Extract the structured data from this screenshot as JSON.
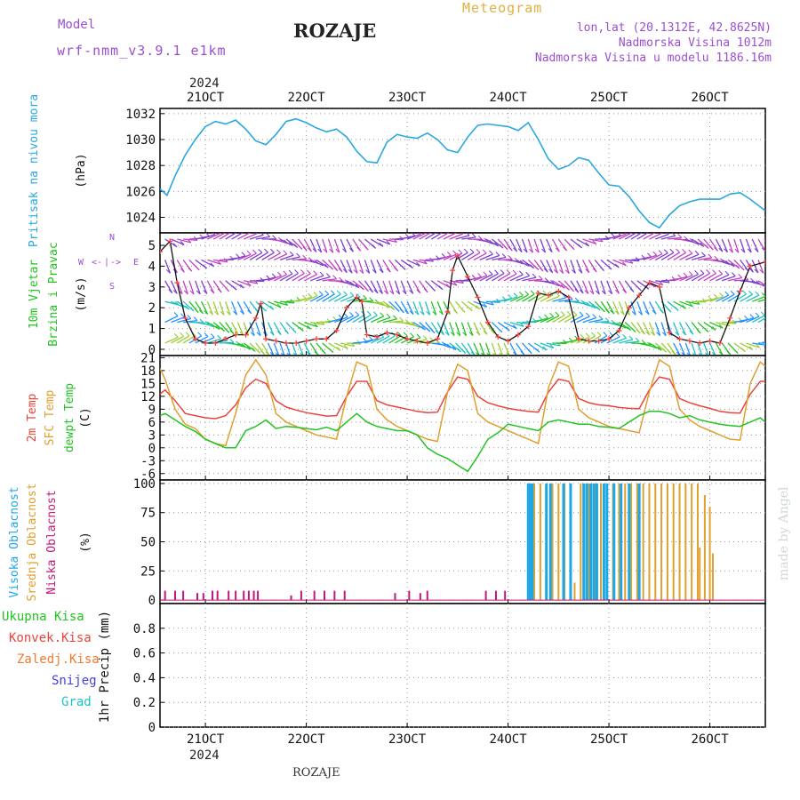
{
  "header": {
    "model_label": "Model",
    "model_name": "wrf-nmm_v3.9.1 e1km",
    "station_title": "ROZAJE",
    "product": "Meteogram",
    "coords": "lon,lat (20.1312E, 42.8625N)",
    "elevation": "Nadmorska Visina 1012m",
    "model_elevation": "Nadmorska Visina u modelu 1186.16m",
    "watermark": "made by Angel",
    "footer_station": "ROZAJE"
  },
  "colors": {
    "pressure": "#29a8e0",
    "temp2m": "#e8453c",
    "sfc_temp": "#e0a030",
    "dewpoint": "#22c322",
    "high_cloud": "#1ea7e6",
    "mid_cloud": "#e0a030",
    "low_cloud": "#c0187a",
    "title_purple": "#9b4fd0",
    "title_orange": "#e0b040"
  },
  "time_axis": {
    "year_label": "2024",
    "day_labels": [
      "21OCT",
      "22OCT",
      "23OCT",
      "24OCT",
      "25OCT",
      "26OCT"
    ],
    "day_values": [
      21,
      22,
      23,
      24,
      25,
      26
    ],
    "x_range": [
      20.55,
      26.55
    ]
  },
  "chart_data": [
    {
      "type": "line",
      "id": "pressure",
      "ylabel_parts": [
        "Pritisak na nivou mora",
        "(hPa)"
      ],
      "ylim": [
        1022.8,
        1032.4
      ],
      "yticks": [
        1024,
        1026,
        1028,
        1030,
        1032
      ],
      "grid": true,
      "series": [
        {
          "x": [
            20.55,
            20.62,
            20.7,
            20.8,
            20.9,
            21.0,
            21.1,
            21.2,
            21.3,
            21.4,
            21.5,
            21.6,
            21.7,
            21.8,
            21.9,
            22.0,
            22.1,
            22.2,
            22.3,
            22.4,
            22.5,
            22.6,
            22.7,
            22.8,
            22.9,
            23.0,
            23.1,
            23.2,
            23.3,
            23.4,
            23.5,
            23.6,
            23.7,
            23.8,
            23.9,
            24.0,
            24.1,
            24.2,
            24.3,
            24.4,
            24.5,
            24.6,
            24.7,
            24.8,
            24.9,
            25.0,
            25.1,
            25.2,
            25.3,
            25.4,
            25.5,
            25.6,
            25.7,
            25.8,
            25.9,
            26.0,
            26.1,
            26.2,
            26.3,
            26.4,
            26.5,
            26.55
          ],
          "y": [
            1026.2,
            1025.7,
            1027.2,
            1028.8,
            1030.0,
            1031.0,
            1031.4,
            1031.2,
            1031.5,
            1030.8,
            1029.9,
            1029.6,
            1030.4,
            1031.4,
            1031.6,
            1031.3,
            1030.9,
            1030.6,
            1030.8,
            1030.2,
            1029.1,
            1028.3,
            1028.2,
            1029.8,
            1030.4,
            1030.2,
            1030.1,
            1030.5,
            1030.0,
            1029.2,
            1029.0,
            1030.2,
            1031.1,
            1031.2,
            1031.1,
            1031.0,
            1030.7,
            1031.3,
            1030.0,
            1028.5,
            1027.7,
            1028.0,
            1028.6,
            1028.4,
            1027.4,
            1026.5,
            1026.4,
            1025.6,
            1024.5,
            1023.6,
            1023.2,
            1024.2,
            1024.9,
            1025.2,
            1025.4,
            1025.4,
            1025.4,
            1025.8,
            1025.9,
            1025.4,
            1024.8,
            1024.5
          ]
        }
      ]
    },
    {
      "type": "line",
      "id": "wind",
      "ylabel_parts": [
        "10m Vjetar",
        "Brzina i Pravac",
        "(m/s)"
      ],
      "compass": [
        "W",
        "<-",
        "|",
        "->",
        "E",
        "S",
        "N"
      ],
      "ylim": [
        -0.3,
        5.6
      ],
      "yticks": [
        0,
        1,
        2,
        3,
        4,
        5
      ],
      "grid": true,
      "series": [
        {
          "name": "speed",
          "x": [
            20.55,
            20.65,
            20.72,
            20.8,
            20.9,
            21.0,
            21.1,
            21.2,
            21.3,
            21.4,
            21.5,
            21.55,
            21.6,
            21.7,
            21.8,
            21.9,
            22.0,
            22.1,
            22.2,
            22.3,
            22.4,
            22.5,
            22.55,
            22.6,
            22.7,
            22.8,
            22.9,
            23.0,
            23.1,
            23.2,
            23.3,
            23.4,
            23.45,
            23.5,
            23.6,
            23.7,
            23.8,
            23.9,
            24.0,
            24.1,
            24.2,
            24.3,
            24.4,
            24.5,
            24.6,
            24.7,
            24.8,
            24.9,
            25.0,
            25.1,
            25.2,
            25.3,
            25.4,
            25.5,
            25.6,
            25.7,
            25.8,
            25.9,
            26.0,
            26.1,
            26.2,
            26.3,
            26.4,
            26.55
          ],
          "y": [
            4.7,
            5.2,
            3.2,
            1.5,
            0.5,
            0.3,
            0.3,
            0.5,
            0.7,
            0.7,
            1.5,
            2.2,
            0.5,
            0.4,
            0.3,
            0.3,
            0.4,
            0.5,
            0.5,
            0.9,
            2.0,
            2.5,
            2.3,
            0.7,
            0.6,
            0.8,
            0.7,
            0.5,
            0.4,
            0.3,
            0.5,
            1.8,
            3.8,
            4.5,
            3.5,
            2.5,
            1.3,
            0.6,
            0.4,
            0.7,
            1.1,
            2.7,
            2.6,
            2.8,
            2.5,
            0.5,
            0.4,
            0.4,
            0.5,
            0.9,
            2.0,
            2.6,
            3.2,
            3.0,
            0.8,
            0.5,
            0.4,
            0.3,
            0.4,
            0.3,
            1.5,
            2.8,
            4.0,
            4.2
          ]
        }
      ]
    },
    {
      "type": "line",
      "id": "temperature",
      "ylabel_parts": [
        "2m Temp",
        "SFC Temp",
        "dewpt Temp",
        "(C)"
      ],
      "ylim": [
        -7.5,
        21.5
      ],
      "yticks": [
        -6,
        -3,
        0,
        3,
        6,
        9,
        12,
        15,
        18,
        21
      ],
      "grid": true,
      "series": [
        {
          "name": "2m Temp",
          "x": [
            20.55,
            20.6,
            20.7,
            20.8,
            20.9,
            21.0,
            21.1,
            21.2,
            21.3,
            21.4,
            21.5,
            21.6,
            21.7,
            21.8,
            21.9,
            22.0,
            22.1,
            22.2,
            22.3,
            22.4,
            22.5,
            22.6,
            22.7,
            22.8,
            22.9,
            23.0,
            23.1,
            23.2,
            23.3,
            23.4,
            23.5,
            23.6,
            23.7,
            23.8,
            23.9,
            24.0,
            24.1,
            24.2,
            24.3,
            24.4,
            24.5,
            24.6,
            24.7,
            24.8,
            24.9,
            25.0,
            25.1,
            25.2,
            25.3,
            25.4,
            25.5,
            25.6,
            25.7,
            25.8,
            25.9,
            26.0,
            26.1,
            26.2,
            26.3,
            26.4,
            26.5,
            26.55
          ],
          "y": [
            12.5,
            13.5,
            11,
            8,
            7.5,
            7,
            6.8,
            7.5,
            10,
            14,
            16,
            15,
            11,
            9.5,
            8.8,
            8.2,
            7.8,
            7.4,
            7.5,
            12,
            15.5,
            15.5,
            11,
            10,
            9.5,
            9,
            8.5,
            8.2,
            8.3,
            13,
            16.5,
            16,
            12,
            10.5,
            9.8,
            9.2,
            8.8,
            8.5,
            8.3,
            13,
            16,
            15.5,
            11.5,
            10.5,
            10,
            9.8,
            9.4,
            9.2,
            9.1,
            13.5,
            16.5,
            16,
            11.5,
            10.5,
            9.8,
            9.2,
            8.5,
            8.2,
            8.1,
            12.5,
            15.5,
            15.5
          ]
        },
        {
          "name": "SFC Temp",
          "x": [
            20.55,
            20.6,
            20.7,
            20.8,
            20.9,
            21.0,
            21.1,
            21.2,
            21.3,
            21.4,
            21.5,
            21.6,
            21.7,
            21.8,
            21.9,
            22.0,
            22.1,
            22.2,
            22.3,
            22.4,
            22.5,
            22.6,
            22.7,
            22.8,
            22.9,
            23.0,
            23.1,
            23.2,
            23.3,
            23.4,
            23.5,
            23.6,
            23.7,
            23.8,
            23.9,
            24.0,
            24.1,
            24.2,
            24.3,
            24.4,
            24.5,
            24.6,
            24.7,
            24.8,
            24.9,
            25.0,
            25.1,
            25.2,
            25.3,
            25.4,
            25.5,
            25.6,
            25.7,
            25.8,
            25.9,
            26.0,
            26.1,
            26.2,
            26.3,
            26.4,
            26.5,
            26.55
          ],
          "y": [
            18.5,
            16,
            9,
            5.5,
            4.5,
            2,
            1,
            0.5,
            8,
            17,
            20.5,
            17,
            8,
            6,
            5,
            4,
            3,
            2.5,
            2,
            12,
            20,
            19,
            9,
            6.5,
            5,
            4,
            3,
            2,
            1.5,
            13,
            19.5,
            18,
            8,
            6,
            5,
            4,
            3,
            2,
            1,
            14,
            20,
            19,
            9,
            7,
            6,
            5,
            4.5,
            4,
            3.5,
            13,
            20.5,
            19,
            9,
            6.5,
            5,
            4,
            3,
            2,
            1.8,
            15,
            20,
            19
          ]
        },
        {
          "name": "dewpt Temp",
          "x": [
            20.55,
            20.6,
            20.7,
            20.8,
            20.9,
            21.0,
            21.1,
            21.2,
            21.3,
            21.4,
            21.5,
            21.6,
            21.7,
            21.8,
            21.9,
            22.0,
            22.1,
            22.2,
            22.3,
            22.4,
            22.5,
            22.6,
            22.7,
            22.8,
            22.9,
            23.0,
            23.1,
            23.2,
            23.3,
            23.4,
            23.5,
            23.6,
            23.7,
            23.8,
            23.9,
            24.0,
            24.1,
            24.2,
            24.3,
            24.4,
            24.5,
            24.6,
            24.7,
            24.8,
            24.9,
            25.0,
            25.1,
            25.2,
            25.3,
            25.4,
            25.5,
            25.6,
            25.7,
            25.8,
            25.9,
            26.0,
            26.1,
            26.2,
            26.3,
            26.4,
            26.5,
            26.55
          ],
          "y": [
            7.5,
            8,
            6.5,
            5,
            3.8,
            2,
            1,
            0,
            0,
            4,
            5,
            6.5,
            4.5,
            5,
            4.8,
            4.5,
            4.2,
            4.8,
            4,
            6,
            8,
            6,
            5,
            4.5,
            4,
            4,
            3,
            0,
            -1.5,
            -2.5,
            -4,
            -5.5,
            -2,
            2,
            3.5,
            5.5,
            5,
            4.5,
            4,
            6,
            6.5,
            6,
            5.5,
            5.5,
            5,
            4.8,
            4.5,
            6,
            7.5,
            8.5,
            8.5,
            8,
            7,
            7.5,
            6.5,
            6,
            5.5,
            5.2,
            5,
            6,
            7,
            6
          ]
        }
      ]
    },
    {
      "type": "bar",
      "id": "clouds",
      "ylabel_parts": [
        "Visoka Oblacnost",
        "Srednja Oblacnost",
        "Niska Oblacnost",
        "(%)"
      ],
      "ylim": [
        -3,
        103
      ],
      "yticks": [
        0,
        25,
        50,
        75,
        100
      ],
      "grid": true,
      "series": [
        {
          "name": "Niska Oblacnost",
          "x": [
            20.6,
            20.7,
            20.78,
            20.92,
            20.98,
            21.07,
            21.12,
            21.23,
            21.3,
            21.38,
            21.43,
            21.48,
            21.52,
            21.85,
            21.95,
            22.08,
            22.18,
            22.28,
            22.38,
            22.88,
            23.02,
            23.13,
            23.2,
            23.78,
            23.88,
            23.97
          ],
          "y": [
            8,
            8,
            8,
            6,
            6,
            8,
            8,
            8,
            8,
            8,
            8,
            8,
            8,
            4,
            8,
            8,
            8,
            8,
            8,
            6,
            8,
            6,
            8,
            8,
            8,
            8
          ]
        },
        {
          "name": "Srednja Oblacnost",
          "x": [
            24.2,
            24.26,
            24.32,
            24.38,
            24.44,
            24.5,
            24.56,
            24.62,
            24.66,
            24.72,
            24.8,
            24.86,
            24.92,
            24.98,
            25.04,
            25.1,
            25.16,
            25.22,
            25.28,
            25.34,
            25.4,
            25.46,
            25.52,
            25.58,
            25.64,
            25.7,
            25.76,
            25.82,
            25.88,
            25.9,
            25.95,
            26.0,
            26.03
          ],
          "y": [
            100,
            100,
            100,
            100,
            100,
            100,
            100,
            100,
            15,
            100,
            100,
            100,
            100,
            100,
            100,
            100,
            100,
            100,
            100,
            100,
            100,
            100,
            100,
            100,
            100,
            100,
            100,
            100,
            100,
            45,
            90,
            80,
            40
          ]
        },
        {
          "name": "Visoka Oblacnost",
          "x": [
            24.2,
            24.22,
            24.24,
            24.38,
            24.42,
            24.55,
            24.62,
            24.75,
            24.78,
            24.82,
            24.85,
            24.88,
            24.95,
            24.98,
            25.05,
            25.12,
            25.2,
            25.3
          ],
          "y": [
            100,
            100,
            100,
            100,
            100,
            100,
            100,
            100,
            100,
            100,
            100,
            100,
            100,
            100,
            100,
            100,
            100,
            100
          ]
        }
      ]
    },
    {
      "type": "line",
      "id": "precip",
      "ylabel": "1hr Precip (mm)",
      "ylim": [
        0,
        1.0
      ],
      "yticks": [
        0,
        0.2,
        0.4,
        0.6,
        0.8
      ],
      "ytick_labels": [
        "0",
        "0.2",
        "0.4",
        "0.6",
        "0.8"
      ],
      "grid": true,
      "legend": [
        "Ukupna Kisa",
        "Konvek.Kisa",
        "Zaledj.Kisa",
        "Snijeg",
        "Grad"
      ],
      "series": []
    }
  ]
}
